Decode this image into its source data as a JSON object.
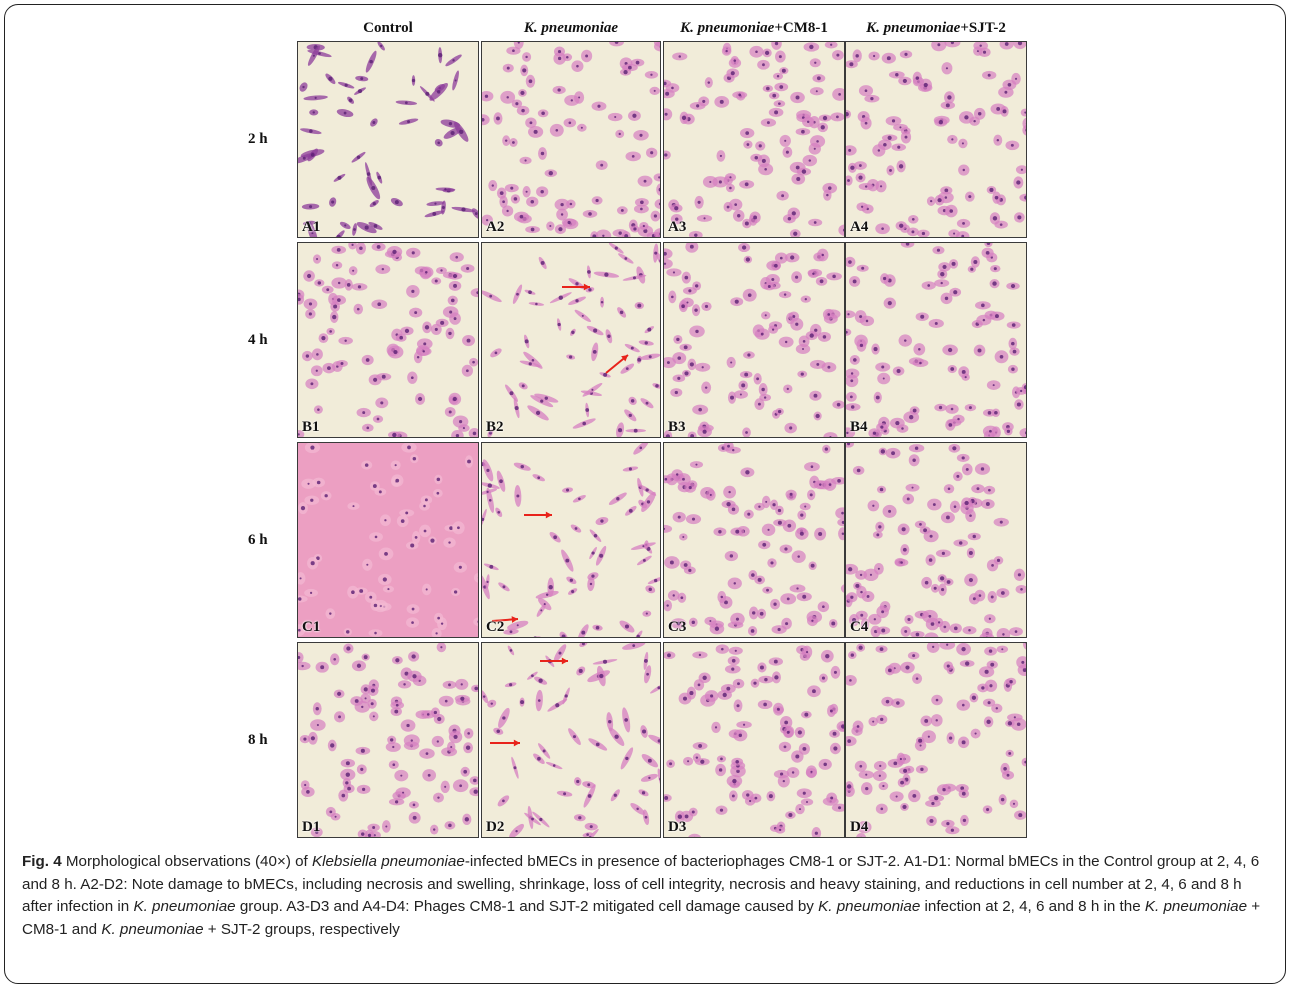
{
  "columns": [
    {
      "id": "control",
      "plain": "Control",
      "italic": ""
    },
    {
      "id": "kp",
      "plain": "",
      "italic": "K. pneumoniae"
    },
    {
      "id": "kp-cm81",
      "plain": "+CM8-1",
      "italic": "K. pneumoniae"
    },
    {
      "id": "kp-sjt2",
      "plain": "+SJT-2",
      "italic": "K. pneumoniae"
    }
  ],
  "rows": [
    {
      "label": "2 h",
      "panels": [
        "A1",
        "A2",
        "A3",
        "A4"
      ]
    },
    {
      "label": "4 h",
      "panels": [
        "B1",
        "B2",
        "B3",
        "B4"
      ]
    },
    {
      "label": "6 h",
      "panels": [
        "C1",
        "C2",
        "C3",
        "C4"
      ]
    },
    {
      "label": "8 h",
      "panels": [
        "D1",
        "D2",
        "D3",
        "D4"
      ]
    }
  ],
  "colors": {
    "background_cream": "#f1ecd9",
    "cell_pink": "#d67fc0",
    "cell_dark": "#8c3c9a",
    "nucleus": "#5a1f73",
    "arrow_red": "#e8231b",
    "control_6h_tint": "#ec9fc2"
  },
  "caption": {
    "fig_label": "Fig. 4",
    "t1": " Morphological observations (40×) of ",
    "i1": "Klebsiella pneumoniae",
    "t2": "-infected bMECs in presence of bacteriophages CM8-1 or SJT-2. A1-D1: Normal bMECs in the Control group at 2, 4, 6 and 8 h. A2-D2: Note damage to bMECs, including necrosis and swelling, shrinkage, loss of cell integrity, necrosis and heavy staining, and reductions in cell number at 2, 4, 6 and 8 h after infection in ",
    "i2": "K. pneumoniae",
    "t3": " group. A3-D3 and A4-D4: Phages CM8-1 and SJT-2 mitigated cell damage caused by ",
    "i3": "K. pneumoniae",
    "t4": " infection at 2, 4, 6 and 8 h in the ",
    "i4": "K. pneumoniae",
    "t5": " + CM8-1 and ",
    "i5": "K. pneumoniae",
    "t6": " + SJT-2 groups, respectively"
  }
}
